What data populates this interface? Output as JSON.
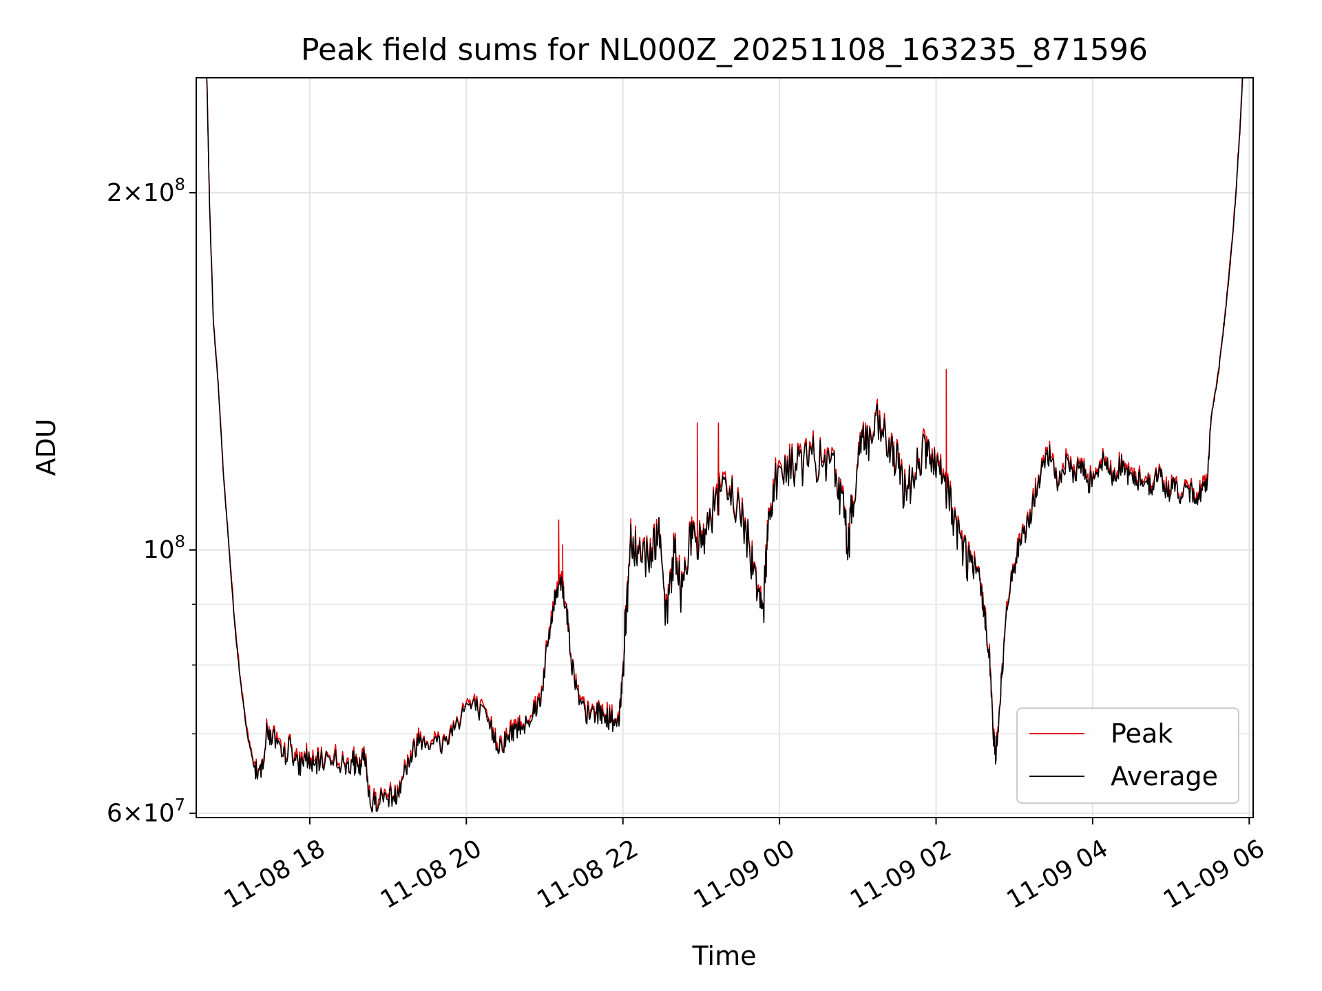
{
  "chart_data": {
    "type": "line",
    "title": "Peak field sums for NL000Z_20251108_163235_871596",
    "xlabel": "Time",
    "ylabel": "ADU",
    "yscale": "log",
    "ylim": [
      59500000,
      250000000
    ],
    "xlim_hours": [
      16.55,
      30.05
    ],
    "grid": true,
    "legend_position": "lower right",
    "x_ticks": [
      {
        "label": "11-08 18",
        "hour": 18
      },
      {
        "label": "11-08 20",
        "hour": 20
      },
      {
        "label": "11-08 22",
        "hour": 22
      },
      {
        "label": "11-09 00",
        "hour": 24
      },
      {
        "label": "11-09 02",
        "hour": 26
      },
      {
        "label": "11-09 04",
        "hour": 28
      },
      {
        "label": "11-09 06",
        "hour": 30
      }
    ],
    "y_major_ticks": [
      {
        "value": 60000000,
        "mantissa": "6",
        "base": "10",
        "exponent": "7"
      },
      {
        "value": 100000000,
        "mantissa": "",
        "base": "10",
        "exponent": "8"
      },
      {
        "value": 200000000,
        "mantissa": "2",
        "base": "10",
        "exponent": "8"
      }
    ],
    "y_minor_ticks": [
      70000000,
      80000000,
      90000000
    ],
    "series": [
      {
        "name": "Peak",
        "color": "#e00000"
      },
      {
        "name": "Average",
        "color": "#000000"
      }
    ],
    "average_points": [
      [
        16.68,
        260000000
      ],
      [
        16.72,
        195000000
      ],
      [
        16.77,
        155000000
      ],
      [
        16.83,
        138000000
      ],
      [
        16.9,
        115000000
      ],
      [
        16.97,
        100000000
      ],
      [
        17.05,
        85000000
      ],
      [
        17.13,
        76000000
      ],
      [
        17.2,
        70000000
      ],
      [
        17.28,
        66000000
      ],
      [
        17.37,
        64500000
      ],
      [
        17.45,
        70000000
      ],
      [
        17.55,
        69500000
      ],
      [
        17.65,
        66500000
      ],
      [
        17.75,
        68500000
      ],
      [
        17.85,
        65500000
      ],
      [
        17.95,
        67000000
      ],
      [
        18.05,
        65500000
      ],
      [
        18.15,
        66500000
      ],
      [
        18.3,
        67000000
      ],
      [
        18.45,
        65500000
      ],
      [
        18.55,
        66500000
      ],
      [
        18.62,
        65000000
      ],
      [
        18.7,
        67000000
      ],
      [
        18.78,
        61000000
      ],
      [
        18.85,
        61500000
      ],
      [
        19.0,
        62000000
      ],
      [
        19.1,
        62000000
      ],
      [
        19.2,
        65000000
      ],
      [
        19.3,
        67000000
      ],
      [
        19.4,
        69500000
      ],
      [
        19.55,
        69000000
      ],
      [
        19.7,
        68500000
      ],
      [
        19.85,
        71000000
      ],
      [
        20.0,
        74000000
      ],
      [
        20.15,
        73500000
      ],
      [
        20.3,
        71000000
      ],
      [
        20.4,
        68500000
      ],
      [
        20.5,
        69000000
      ],
      [
        20.6,
        70500000
      ],
      [
        20.7,
        71000000
      ],
      [
        20.85,
        73000000
      ],
      [
        20.95,
        75000000
      ],
      [
        21.05,
        84000000
      ],
      [
        21.12,
        90000000
      ],
      [
        21.2,
        95000000
      ],
      [
        21.28,
        89000000
      ],
      [
        21.35,
        80000000
      ],
      [
        21.45,
        74000000
      ],
      [
        21.55,
        72500000
      ],
      [
        21.65,
        73000000
      ],
      [
        21.75,
        72500000
      ],
      [
        21.85,
        72000000
      ],
      [
        21.95,
        71000000
      ],
      [
        22.0,
        80000000
      ],
      [
        22.05,
        90000000
      ],
      [
        22.1,
        103000000
      ],
      [
        22.2,
        100000000
      ],
      [
        22.35,
        99000000
      ],
      [
        22.45,
        104000000
      ],
      [
        22.55,
        87000000
      ],
      [
        22.65,
        100000000
      ],
      [
        22.75,
        92000000
      ],
      [
        22.85,
        103000000
      ],
      [
        22.95,
        100000000
      ],
      [
        23.05,
        104000000
      ],
      [
        23.2,
        110000000
      ],
      [
        23.35,
        112000000
      ],
      [
        23.5,
        108000000
      ],
      [
        23.62,
        100000000
      ],
      [
        23.72,
        94000000
      ],
      [
        23.8,
        90000000
      ],
      [
        23.85,
        105000000
      ],
      [
        23.95,
        115000000
      ],
      [
        24.1,
        117000000
      ],
      [
        24.25,
        118000000
      ],
      [
        24.4,
        120000000
      ],
      [
        24.55,
        118000000
      ],
      [
        24.7,
        117000000
      ],
      [
        24.8,
        110000000
      ],
      [
        24.88,
        101000000
      ],
      [
        24.95,
        112000000
      ],
      [
        25.05,
        125000000
      ],
      [
        25.15,
        123000000
      ],
      [
        25.25,
        127000000
      ],
      [
        25.4,
        122000000
      ],
      [
        25.5,
        118000000
      ],
      [
        25.6,
        112000000
      ],
      [
        25.72,
        116000000
      ],
      [
        25.85,
        122000000
      ],
      [
        25.95,
        118000000
      ],
      [
        26.05,
        115000000
      ],
      [
        26.15,
        112000000
      ],
      [
        26.25,
        105000000
      ],
      [
        26.35,
        100000000
      ],
      [
        26.45,
        97000000
      ],
      [
        26.55,
        95000000
      ],
      [
        26.62,
        88000000
      ],
      [
        26.68,
        82000000
      ],
      [
        26.73,
        70000000
      ],
      [
        26.76,
        67000000
      ],
      [
        26.82,
        75000000
      ],
      [
        26.88,
        85000000
      ],
      [
        26.95,
        94000000
      ],
      [
        27.05,
        100000000
      ],
      [
        27.15,
        104000000
      ],
      [
        27.25,
        110000000
      ],
      [
        27.35,
        117000000
      ],
      [
        27.45,
        120000000
      ],
      [
        27.55,
        114000000
      ],
      [
        27.65,
        118000000
      ],
      [
        27.75,
        116000000
      ],
      [
        27.85,
        118000000
      ],
      [
        27.95,
        114000000
      ],
      [
        28.05,
        117000000
      ],
      [
        28.15,
        119000000
      ],
      [
        28.25,
        115000000
      ],
      [
        28.35,
        118000000
      ],
      [
        28.45,
        116000000
      ],
      [
        28.55,
        114000000
      ],
      [
        28.65,
        115000000
      ],
      [
        28.75,
        113000000
      ],
      [
        28.85,
        116000000
      ],
      [
        28.95,
        112000000
      ],
      [
        29.05,
        113000000
      ],
      [
        29.15,
        111000000
      ],
      [
        29.25,
        112000000
      ],
      [
        29.35,
        111000000
      ],
      [
        29.45,
        113000000
      ],
      [
        29.52,
        130000000
      ],
      [
        29.6,
        140000000
      ],
      [
        29.68,
        155000000
      ],
      [
        29.75,
        172000000
      ],
      [
        29.82,
        195000000
      ],
      [
        29.88,
        225000000
      ],
      [
        29.93,
        260000000
      ]
    ],
    "peak_spikes": [
      [
        21.18,
        106000000
      ],
      [
        21.23,
        101000000
      ],
      [
        22.95,
        128000000
      ],
      [
        23.22,
        128000000
      ],
      [
        26.13,
        142000000
      ]
    ]
  }
}
